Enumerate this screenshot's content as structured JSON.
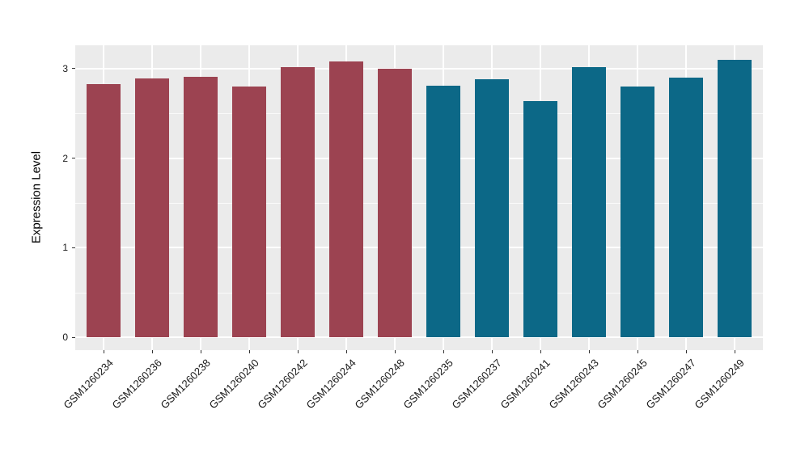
{
  "chart_data": {
    "type": "bar",
    "title": "",
    "xlabel": "",
    "ylabel": "Expression Level",
    "categories": [
      "GSM1260234",
      "GSM1260236",
      "GSM1260238",
      "GSM1260240",
      "GSM1260242",
      "GSM1260244",
      "GSM1260248",
      "GSM1260235",
      "GSM1260237",
      "GSM1260241",
      "GSM1260243",
      "GSM1260245",
      "GSM1260247",
      "GSM1260249"
    ],
    "values": [
      2.83,
      2.89,
      2.91,
      2.8,
      3.02,
      3.08,
      3.0,
      2.81,
      2.88,
      2.64,
      3.02,
      2.8,
      2.9,
      3.1
    ],
    "bar_groups": [
      "A",
      "A",
      "A",
      "A",
      "A",
      "A",
      "A",
      "B",
      "B",
      "B",
      "B",
      "B",
      "B",
      "B"
    ],
    "group_colors": {
      "A": "#9c4351",
      "B": "#0c6887"
    },
    "ytick_labels": [
      "0",
      "1",
      "2",
      "3"
    ],
    "ytick_values": [
      0,
      1,
      2,
      3
    ],
    "minor_ytick_values": [
      0.5,
      1.5,
      2.5
    ],
    "ylim": [
      0,
      3.26
    ],
    "grid": "on",
    "legend_position": "none",
    "colors": {
      "panel_background": "#ebebeb",
      "grid_major": "#ffffff",
      "grid_minor": "rgba(255,255,255,0.75)",
      "axis_text": "#1a1a1a",
      "tick_mark": "#333333"
    }
  }
}
